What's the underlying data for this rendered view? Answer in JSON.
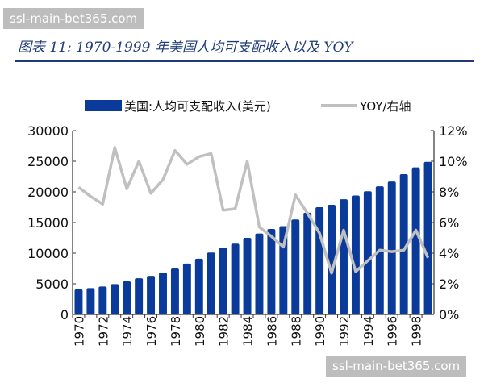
{
  "watermark": "ssl-main-bet365.com",
  "chart_data": {
    "type": "bar+line",
    "title": "图表 11: 1970-1999 年美国人均可支配收入以及 YOY",
    "categories": [
      "1970",
      "1971",
      "1972",
      "1973",
      "1974",
      "1975",
      "1976",
      "1977",
      "1978",
      "1979",
      "1980",
      "1981",
      "1982",
      "1983",
      "1984",
      "1985",
      "1986",
      "1987",
      "1988",
      "1989",
      "1990",
      "1991",
      "1992",
      "1993",
      "1994",
      "1995",
      "1996",
      "1997",
      "1998",
      "1999"
    ],
    "x_tick_labels": [
      "1970",
      "1972",
      "1974",
      "1976",
      "1978",
      "1980",
      "1982",
      "1984",
      "1986",
      "1988",
      "1990",
      "1992",
      "1994",
      "1996",
      "1998"
    ],
    "series": [
      {
        "name": "美国:人均可支配收入(美元)",
        "type": "bar",
        "axis": "left",
        "color": "#0a3a9a",
        "values": [
          4100,
          4300,
          4550,
          4950,
          5400,
          5900,
          6300,
          6850,
          7500,
          8300,
          9100,
          10100,
          10900,
          11550,
          12500,
          13200,
          13950,
          14400,
          15500,
          16600,
          17500,
          17900,
          18800,
          19400,
          20100,
          20900,
          21700,
          22900,
          24000,
          24900
        ]
      },
      {
        "name": "YOY/右轴",
        "type": "line",
        "axis": "right",
        "color": "#c0c0c0",
        "values": [
          8.3,
          7.7,
          7.2,
          10.9,
          8.2,
          10.0,
          7.9,
          8.8,
          10.7,
          9.8,
          10.3,
          10.5,
          6.8,
          6.9,
          10.0,
          5.7,
          5.1,
          4.4,
          7.8,
          6.6,
          5.3,
          2.7,
          5.5,
          2.8,
          3.5,
          4.2,
          4.1,
          4.2,
          5.5,
          3.7
        ]
      }
    ],
    "y_left": {
      "ylim": [
        0,
        30000
      ],
      "ticks": [
        "0",
        "5000",
        "10000",
        "15000",
        "20000",
        "25000",
        "30000"
      ]
    },
    "y_right": {
      "ylim": [
        0,
        12
      ],
      "ticks": [
        "0%",
        "2%",
        "4%",
        "6%",
        "8%",
        "10%",
        "12%"
      ]
    },
    "legend_placement": "top",
    "grid": false
  }
}
